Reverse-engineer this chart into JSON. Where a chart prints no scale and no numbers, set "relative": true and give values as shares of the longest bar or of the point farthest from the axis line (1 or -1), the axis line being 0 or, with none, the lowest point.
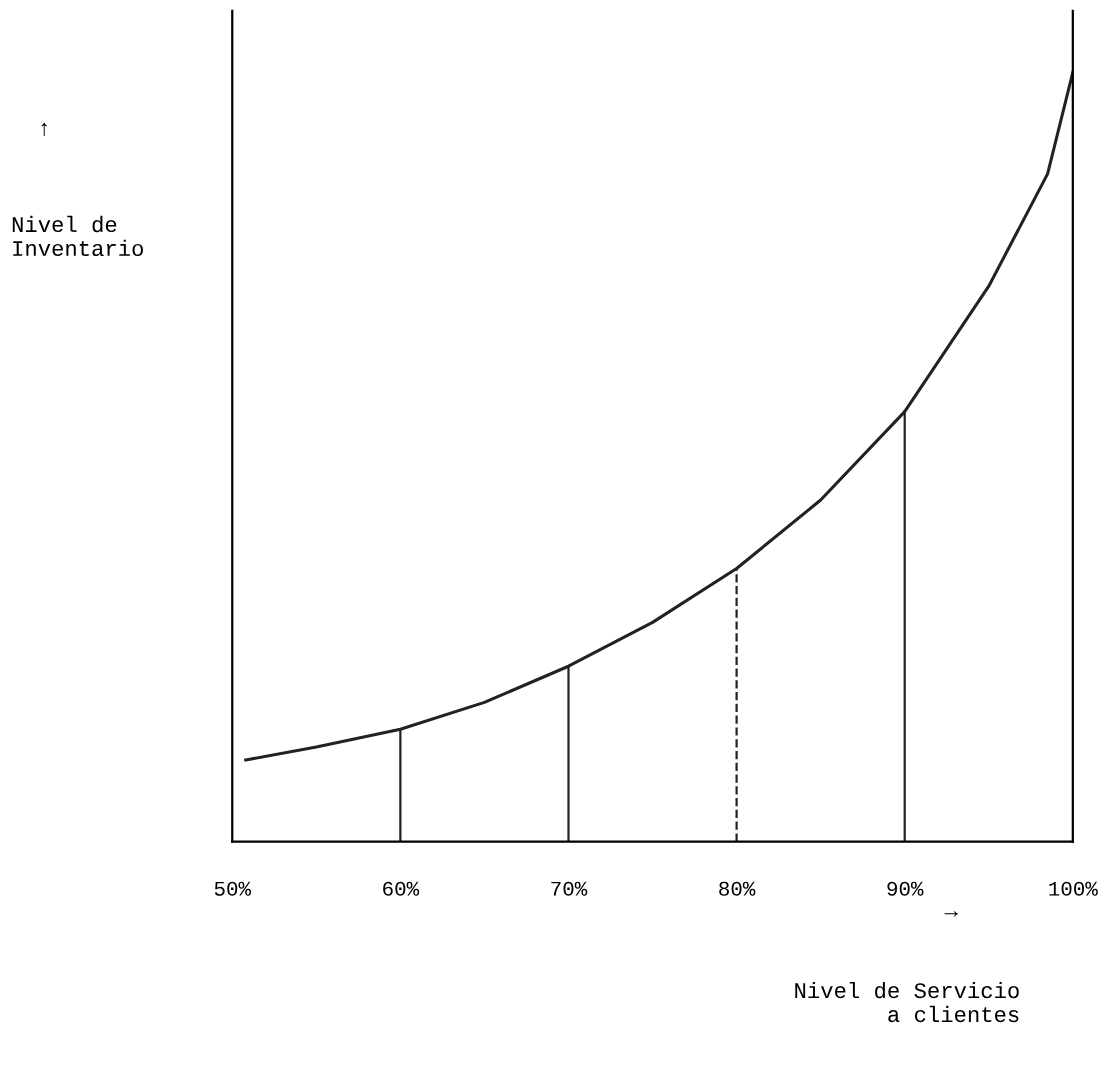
{
  "chart_data": {
    "type": "line",
    "relative": true,
    "xlabel": "Nivel de Servicio\na clientes",
    "ylabel": "Nivel de\nInventario",
    "annotations": [
      "↑",
      "→"
    ],
    "x": [
      50.8,
      55,
      60,
      65,
      70,
      75,
      80,
      85,
      90,
      95,
      98.5,
      100
    ],
    "series": [
      {
        "color": "#222222",
        "values": [
          0.106,
          0.123,
          0.146,
          0.181,
          0.228,
          0.285,
          0.355,
          0.444,
          0.559,
          0.722,
          0.868,
          1
        ]
      }
    ],
    "xlim": [
      50,
      100
    ],
    "xticks": [
      {
        "value": 50,
        "label": "50%"
      },
      {
        "value": 60,
        "label": "60%"
      },
      {
        "value": 70,
        "label": "70%"
      },
      {
        "value": 80,
        "label": "80%"
      },
      {
        "value": 90,
        "label": "90%"
      },
      {
        "value": 100,
        "label": "100%"
      }
    ],
    "ref_lines": [
      {
        "axis": "x",
        "value": 60,
        "line_style": "solid"
      },
      {
        "axis": "x",
        "value": 70,
        "line_style": "solid"
      },
      {
        "axis": "x",
        "value": 80,
        "line_style": "dashed"
      },
      {
        "axis": "x",
        "value": 90,
        "line_style": "solid"
      }
    ],
    "grid": false,
    "legend": false,
    "marker": "none",
    "line_style": "solid"
  }
}
